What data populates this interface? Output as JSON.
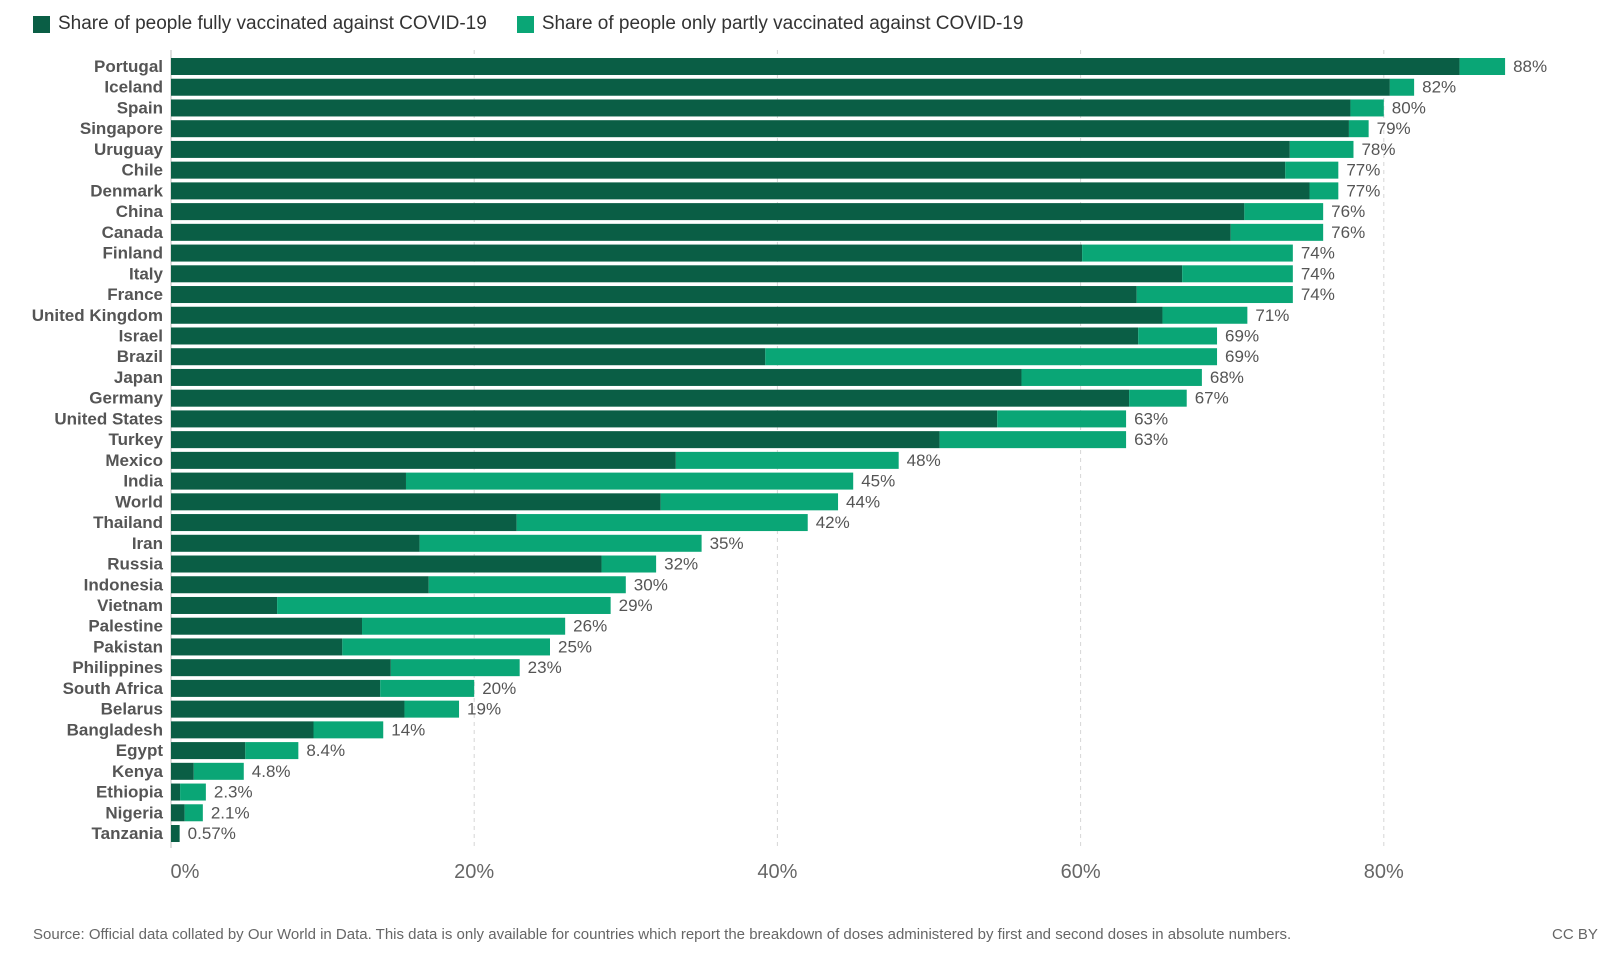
{
  "chart_data": {
    "type": "bar",
    "orientation": "horizontal",
    "stacked": true,
    "categories": [
      "Portugal",
      "Iceland",
      "Spain",
      "Singapore",
      "Uruguay",
      "Chile",
      "Denmark",
      "China",
      "Canada",
      "Finland",
      "Italy",
      "France",
      "United Kingdom",
      "Israel",
      "Brazil",
      "Japan",
      "Germany",
      "United States",
      "Turkey",
      "Mexico",
      "India",
      "World",
      "Thailand",
      "Iran",
      "Russia",
      "Indonesia",
      "Vietnam",
      "Palestine",
      "Pakistan",
      "Philippines",
      "South Africa",
      "Belarus",
      "Bangladesh",
      "Egypt",
      "Kenya",
      "Ethiopia",
      "Nigeria",
      "Tanzania"
    ],
    "series": [
      {
        "name": "Share of people fully vaccinated against COVID-19",
        "color": "#0a5e45",
        "values": [
          85.0,
          80.4,
          77.8,
          77.7,
          73.8,
          73.5,
          75.1,
          70.8,
          69.9,
          60.1,
          66.7,
          63.7,
          65.4,
          63.8,
          39.2,
          56.1,
          63.2,
          54.5,
          50.7,
          33.3,
          15.5,
          32.3,
          22.8,
          16.4,
          28.4,
          17.0,
          7.0,
          12.6,
          11.3,
          14.5,
          13.8,
          15.4,
          9.4,
          4.9,
          1.5,
          0.6,
          0.9,
          0.57
        ]
      },
      {
        "name": "Share of people only partly vaccinated against COVID-19",
        "color": "#0aa676",
        "values": [
          3.0,
          1.6,
          2.2,
          1.3,
          4.2,
          3.5,
          1.9,
          5.2,
          6.1,
          13.9,
          7.3,
          10.3,
          5.6,
          5.2,
          29.8,
          11.9,
          3.8,
          8.5,
          12.3,
          14.7,
          29.5,
          11.7,
          19.2,
          18.6,
          3.6,
          13.0,
          22.0,
          13.4,
          13.7,
          8.5,
          6.2,
          3.6,
          4.6,
          3.5,
          3.3,
          1.7,
          1.2,
          0.0
        ]
      }
    ],
    "total_labels": [
      "88%",
      "82%",
      "80%",
      "79%",
      "78%",
      "77%",
      "77%",
      "76%",
      "76%",
      "74%",
      "74%",
      "74%",
      "71%",
      "69%",
      "69%",
      "68%",
      "67%",
      "63%",
      "63%",
      "48%",
      "45%",
      "44%",
      "42%",
      "35%",
      "32%",
      "30%",
      "29%",
      "26%",
      "25%",
      "23%",
      "20%",
      "19%",
      "14%",
      "8.4%",
      "4.8%",
      "2.3%",
      "2.1%",
      "0.57%"
    ],
    "xlim": [
      0,
      88
    ],
    "x_ticks": [
      0,
      20,
      40,
      60,
      80
    ],
    "x_tick_labels": [
      "0%",
      "20%",
      "40%",
      "60%",
      "80%"
    ],
    "grid": "vertical-dashed",
    "legend_position": "top-left"
  },
  "source": "Source: Official data collated by Our World in Data. This data is only available for countries which report the breakdown of doses administered by first and second doses in absolute numbers.",
  "license": "CC BY"
}
